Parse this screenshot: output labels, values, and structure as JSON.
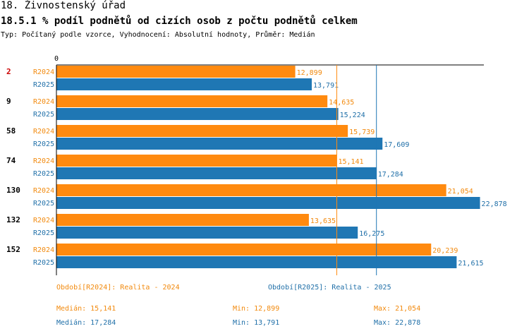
{
  "header": {
    "title1": "18. Živnostenský úřad",
    "title2": "18.5.1 % podíl podnětů od cizích osob z počtu podnětů celkem",
    "subtitle": "Typ: Počítaný podle vzorce, Vyhodnocení: Absolutní hodnoty, Průměr: Medián"
  },
  "colors": {
    "r2024": "#ff8a0f",
    "r2025": "#1f77b4",
    "label2024": "#f28a0e",
    "label2025": "#1f6fa8",
    "highlight": "#cc0000"
  },
  "chart_data": {
    "type": "bar",
    "orientation": "horizontal",
    "axis_zero_label": "0",
    "xlim": [
      0,
      24000
    ],
    "categories": [
      "2",
      "9",
      "58",
      "74",
      "130",
      "132",
      "152"
    ],
    "highlighted_category": "2",
    "series": [
      {
        "name": "R2024",
        "values": [
          12.899,
          14.635,
          15.739,
          15.141,
          21.054,
          13.635,
          20.239
        ],
        "labels": [
          "12,899",
          "14,635",
          "15,739",
          "15,141",
          "21,054",
          "13,635",
          "20,239"
        ]
      },
      {
        "name": "R2025",
        "values": [
          13.791,
          15.224,
          17.609,
          17.284,
          22.878,
          16.275,
          21.615
        ],
        "labels": [
          "13,791",
          "15,224",
          "17,609",
          "17,284",
          "22,878",
          "16,275",
          "21,615"
        ]
      }
    ],
    "median_lines": [
      15.141,
      17.284
    ]
  },
  "legend": {
    "r2024": "Období[R2024]: Realita - 2024",
    "r2025": "Období[R2025]: Realita - 2025"
  },
  "stats": {
    "r2024": {
      "median": "Medián: 15,141",
      "min": "Min: 12,899",
      "max": "Max: 21,054"
    },
    "r2025": {
      "median": "Medián: 17,284",
      "min": "Min: 13,791",
      "max": "Max: 22,878"
    }
  }
}
